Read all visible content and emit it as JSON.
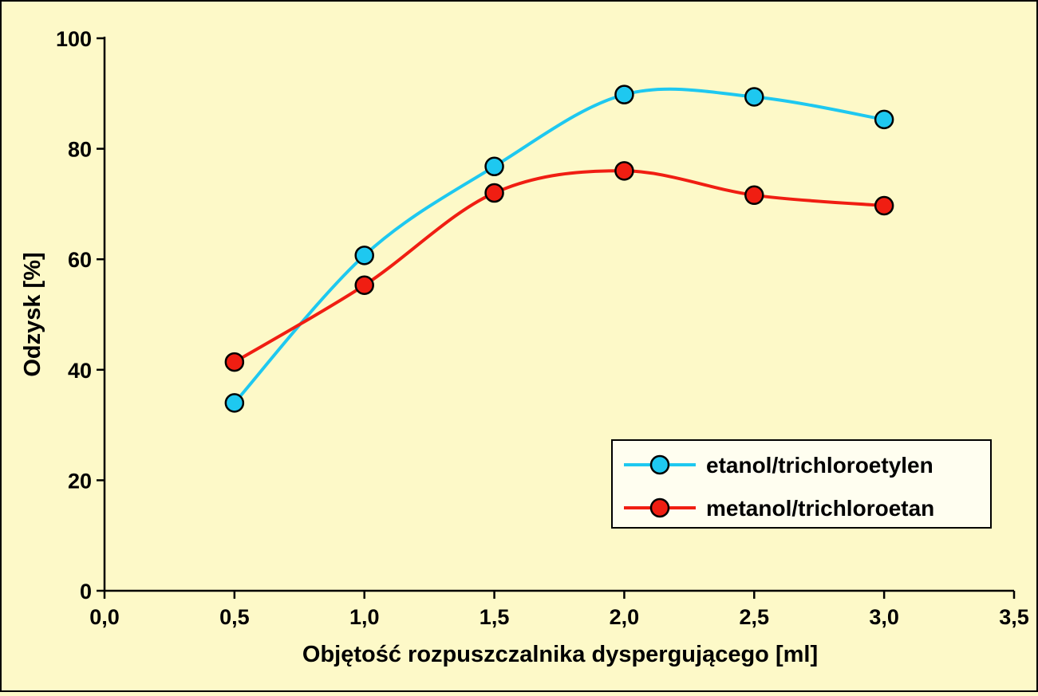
{
  "chart_data": {
    "type": "line",
    "title": "",
    "xlabel": "Objętość rozpuszczalnika dyspergującego [ml]",
    "ylabel": "Odzysk [%]",
    "xlim": [
      0,
      3.5
    ],
    "ylim": [
      0,
      100
    ],
    "x_ticks": [
      0,
      0.5,
      1.0,
      1.5,
      2.0,
      2.5,
      3.0,
      3.5
    ],
    "x_tick_labels": [
      "0,0",
      "0,5",
      "1,0",
      "1,5",
      "2,0",
      "2,5",
      "3,0",
      "3,5"
    ],
    "y_ticks": [
      0,
      20,
      40,
      60,
      80,
      100
    ],
    "y_tick_labels": [
      "0",
      "20",
      "40",
      "60",
      "80",
      "100"
    ],
    "grid": false,
    "legend_position": "bottom-right",
    "series": [
      {
        "name": "etanol/trichloroetylen",
        "color": "#1ec8f0",
        "x": [
          0.5,
          1.0,
          1.5,
          2.0,
          2.5,
          3.0
        ],
        "y": [
          34,
          60.7,
          76.8,
          89.8,
          89.4,
          85.3
        ]
      },
      {
        "name": "metanol/trichloroetan",
        "color": "#f01e12",
        "x": [
          0.5,
          1.0,
          1.5,
          2.0,
          2.5,
          3.0
        ],
        "y": [
          41.4,
          55.3,
          72.0,
          76.0,
          71.6,
          69.7
        ]
      }
    ]
  }
}
